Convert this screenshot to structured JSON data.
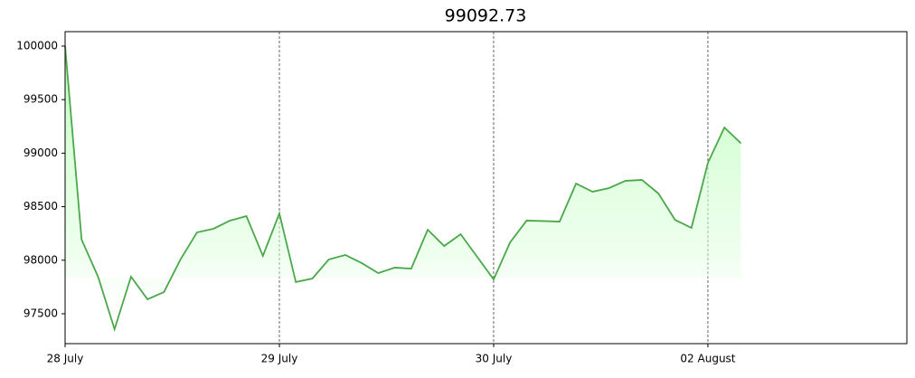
{
  "chart_data": {
    "type": "line",
    "title": "99092.73",
    "x": [
      0,
      1,
      2,
      3,
      4,
      5,
      6,
      7,
      8,
      9,
      10,
      11,
      12,
      13,
      14,
      15,
      16,
      17,
      18,
      19,
      20,
      21,
      22,
      23,
      24,
      25,
      26,
      27,
      28,
      29,
      30,
      31,
      32,
      33,
      34,
      35,
      36,
      37,
      38,
      39,
      40,
      41
    ],
    "series": [
      {
        "color": "#4aa84a",
        "values": [
          100000,
          98193,
          97846,
          97356,
          97846,
          97635,
          97703,
          98007,
          98260,
          98294,
          98370,
          98412,
          98041,
          98437,
          97796,
          97829,
          98007,
          98049,
          97973,
          97880,
          97931,
          97922,
          98285,
          98133,
          98243,
          98032,
          97821,
          98167,
          98370,
          98366,
          98361,
          98716,
          98640,
          98674,
          98742,
          98750,
          98623,
          98378,
          98302,
          98910,
          99240,
          99092.73
        ]
      }
    ],
    "xlim": [
      0,
      51.07
    ],
    "xticks": [
      {
        "value": 0,
        "label": "28 July"
      },
      {
        "value": 13,
        "label": "29 July"
      },
      {
        "value": 26,
        "label": "30 July"
      },
      {
        "value": 39,
        "label": "02 August"
      }
    ],
    "ylim": [
      97221,
      100135
    ],
    "yticks": [
      97500,
      98000,
      98500,
      99000,
      99500,
      100000
    ],
    "grid": "x"
  }
}
